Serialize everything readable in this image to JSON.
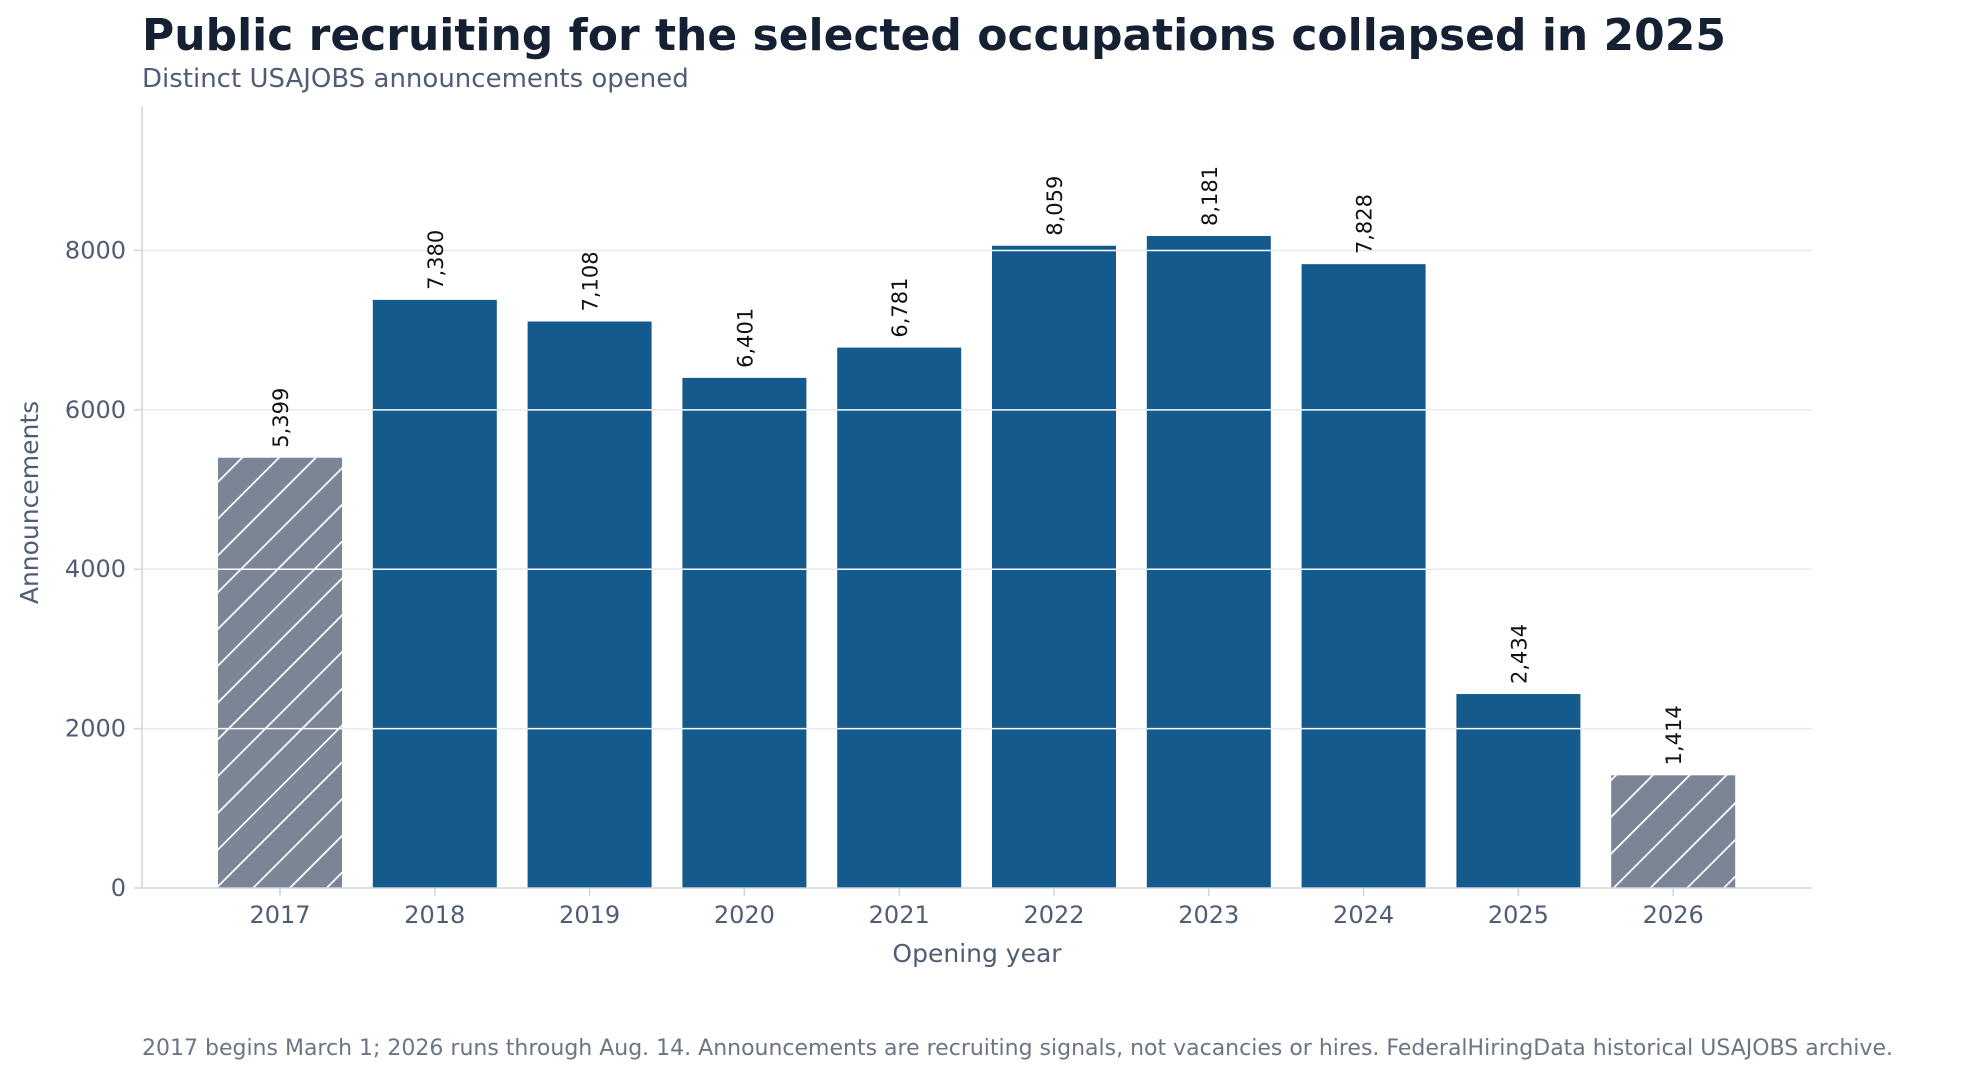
{
  "header": {
    "title": "Public recruiting for the selected occupations collapsed in 2025",
    "subtitle": "Distinct USAJOBS announcements opened"
  },
  "footnote": "2017 begins March 1; 2026 runs through Aug. 14. Announcements are recruiting signals, not vacancies or hires. FederalHiringData historical USAJOBS archive.",
  "chart_data": {
    "type": "bar",
    "title": "Public recruiting for the selected occupations collapsed in 2025",
    "subtitle": "Distinct USAJOBS announcements opened",
    "xlabel": "Opening year",
    "ylabel": "Announcements",
    "categories": [
      "2017",
      "2018",
      "2019",
      "2020",
      "2021",
      "2022",
      "2023",
      "2024",
      "2025",
      "2026"
    ],
    "values": [
      5399,
      7380,
      7108,
      6401,
      6781,
      8059,
      8181,
      7828,
      2434,
      1414
    ],
    "value_labels": [
      "5,399",
      "7,380",
      "7,108",
      "6,401",
      "6,781",
      "8,059",
      "8,181",
      "7,828",
      "2,434",
      "1,414"
    ],
    "partial_year": [
      true,
      false,
      false,
      false,
      false,
      false,
      false,
      false,
      false,
      true
    ],
    "ylim": [
      0,
      9800
    ],
    "yticks": [
      0,
      2000,
      4000,
      6000,
      8000
    ],
    "ytick_labels": [
      "0",
      "2000",
      "4000",
      "6000",
      "8000"
    ],
    "grid": "horizontal",
    "legend": "none",
    "colors": {
      "full_year": "#145a8c",
      "partial_year": "#7b8596",
      "gridline": "#e6e9ee",
      "axis": "#cfd5de",
      "tick_text": "#4f5d75",
      "label_text": "#111111"
    }
  }
}
